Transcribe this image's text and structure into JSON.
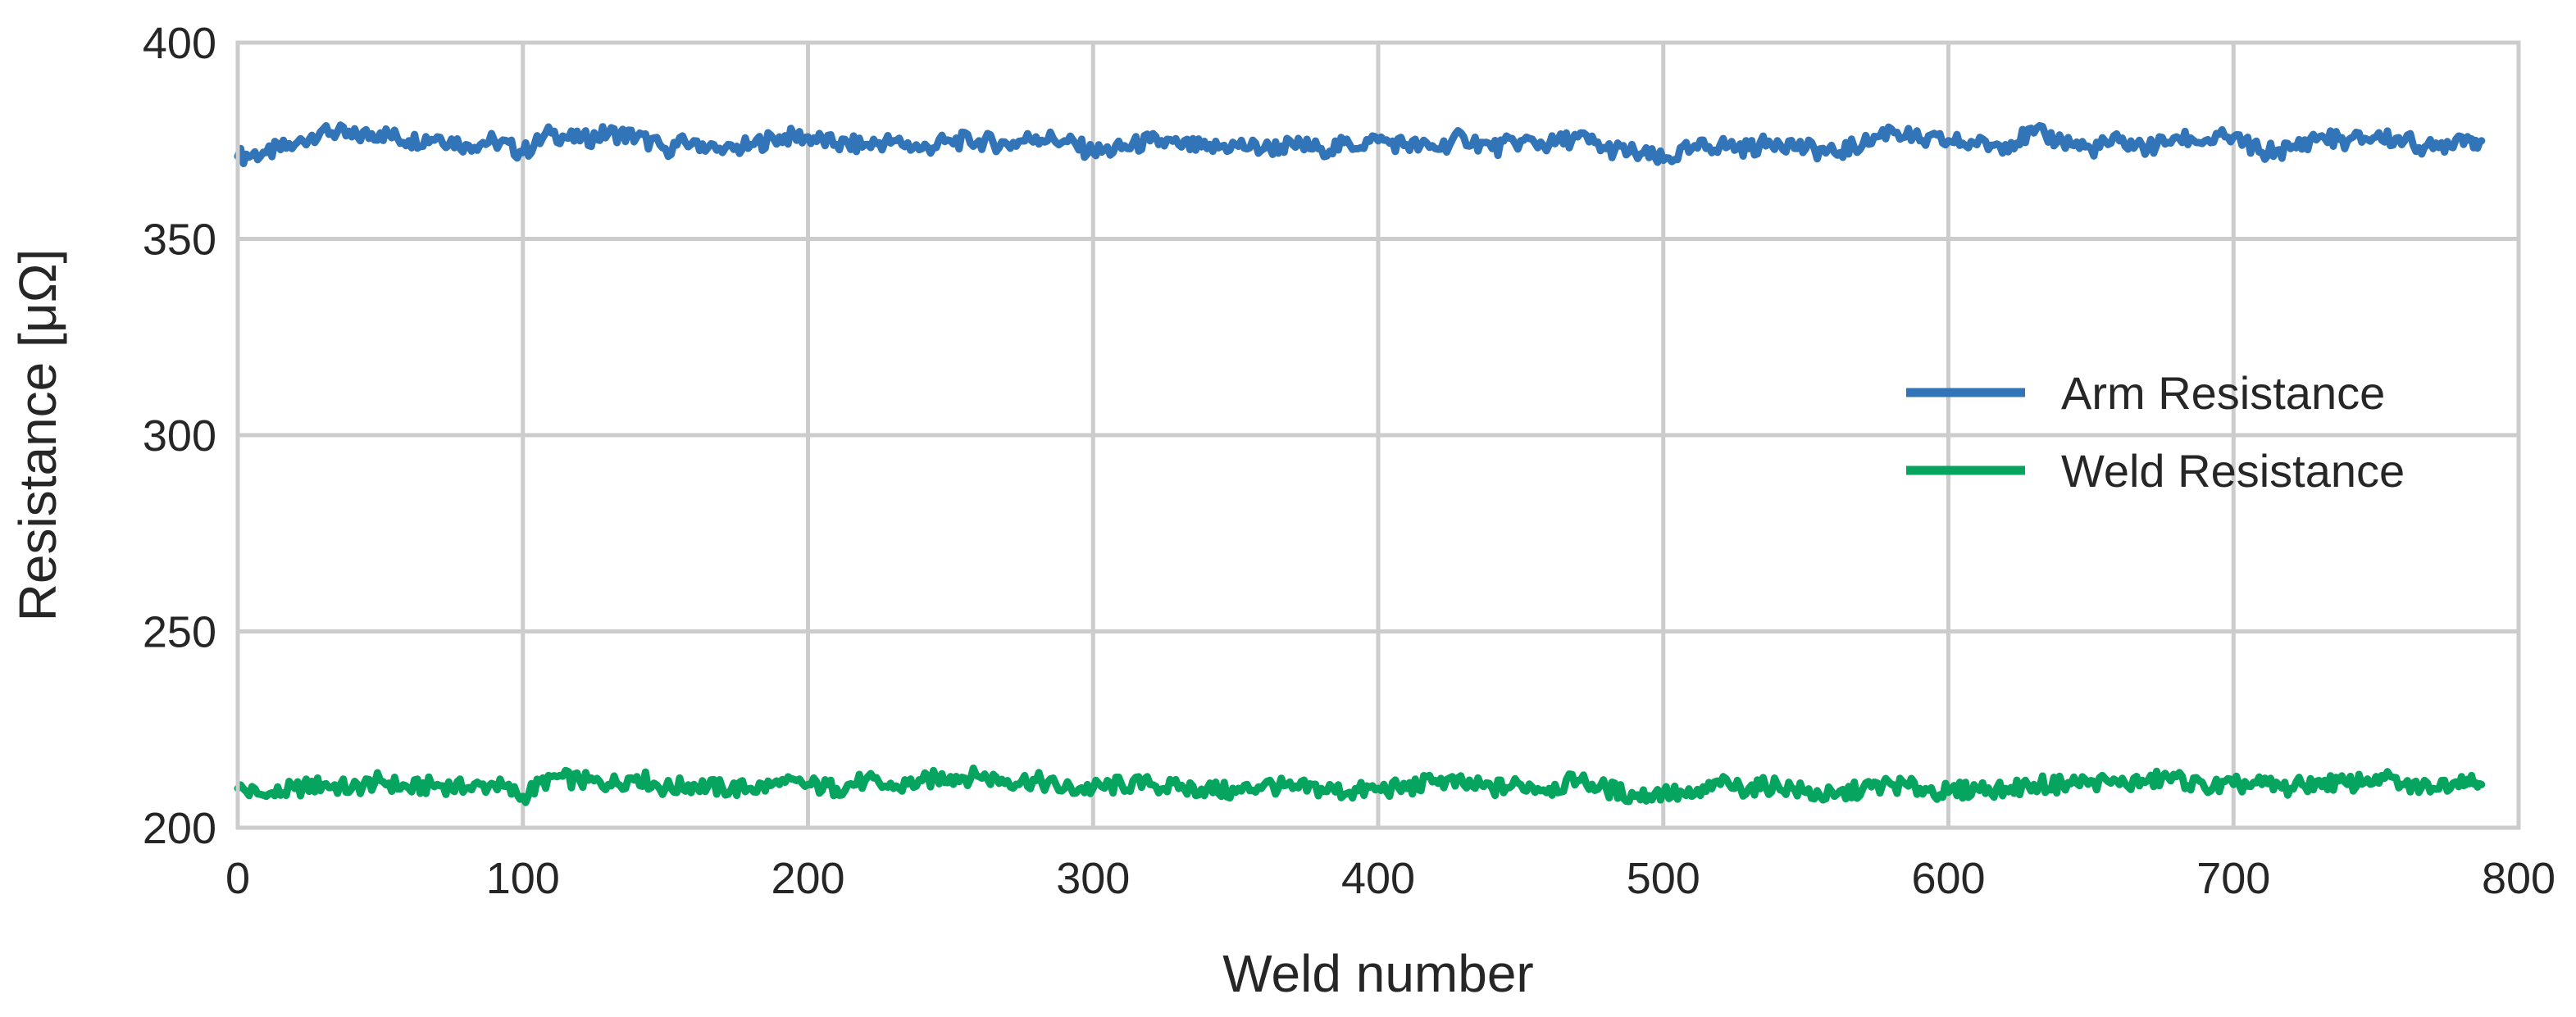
{
  "chart_data": {
    "type": "line",
    "title": "",
    "xlabel": "Weld number",
    "ylabel": "Resistance [μΩ]",
    "xlim": [
      0,
      800
    ],
    "ylim": [
      200,
      400
    ],
    "xticks": [
      0,
      100,
      200,
      300,
      400,
      500,
      600,
      700,
      800
    ],
    "yticks": [
      200,
      250,
      300,
      350,
      400
    ],
    "xtick_labels": [
      "0",
      "100",
      "200",
      "300",
      "400",
      "500",
      "600",
      "700",
      "800"
    ],
    "ytick_labels": [
      "200",
      "250",
      "300",
      "350",
      "400"
    ],
    "grid": true,
    "legend_position": "right",
    "x": [
      0,
      10,
      20,
      30,
      40,
      50,
      60,
      70,
      80,
      90,
      100,
      110,
      120,
      130,
      140,
      150,
      160,
      170,
      180,
      190,
      200,
      210,
      220,
      230,
      240,
      250,
      260,
      270,
      280,
      290,
      300,
      310,
      320,
      330,
      340,
      350,
      360,
      370,
      380,
      390,
      400,
      410,
      420,
      430,
      440,
      450,
      460,
      470,
      480,
      490,
      500,
      510,
      520,
      530,
      540,
      550,
      560,
      570,
      580,
      590,
      600,
      610,
      620,
      630,
      640,
      650,
      660,
      670,
      680,
      690,
      700,
      710,
      720,
      730,
      740,
      750,
      760,
      770,
      780,
      787
    ],
    "series": [
      {
        "name": "Arm Resistance",
        "color": "#3274b8",
        "values": [
          371,
          372,
          374,
          378,
          376,
          377,
          375,
          376,
          374,
          375,
          372,
          377,
          375,
          377,
          376,
          373,
          375,
          372,
          374,
          376,
          376,
          374,
          374,
          375,
          373,
          375,
          375,
          374,
          376,
          375,
          372,
          373,
          375,
          374,
          373,
          374,
          373,
          374,
          373,
          374,
          375,
          374,
          373,
          376,
          373,
          375,
          374,
          376,
          373,
          372,
          370,
          373,
          374,
          373,
          375,
          373,
          372,
          374,
          378,
          375,
          375,
          374,
          374,
          377,
          375,
          373,
          375,
          373,
          376,
          375,
          376,
          372,
          373,
          376,
          375,
          376,
          375,
          373,
          376,
          375
        ]
      },
      {
        "name": "Weld Resistance",
        "color": "#05a560",
        "values": [
          210,
          208,
          210,
          211,
          210,
          212,
          210,
          211,
          210,
          211,
          208,
          213,
          212,
          211,
          213,
          210,
          211,
          210,
          210,
          211,
          211,
          210,
          212,
          210,
          212,
          213,
          213,
          212,
          212,
          210,
          210,
          211,
          211,
          210,
          210,
          209,
          211,
          210,
          210,
          209,
          210,
          210,
          212,
          211,
          210,
          211,
          210,
          212,
          210,
          208,
          209,
          208,
          211,
          210,
          211,
          209,
          208,
          210,
          211,
          210,
          209,
          210,
          210,
          211,
          211,
          212,
          211,
          212,
          213,
          210,
          211,
          211,
          210,
          212,
          211,
          213,
          211,
          210,
          213,
          211
        ]
      }
    ]
  }
}
